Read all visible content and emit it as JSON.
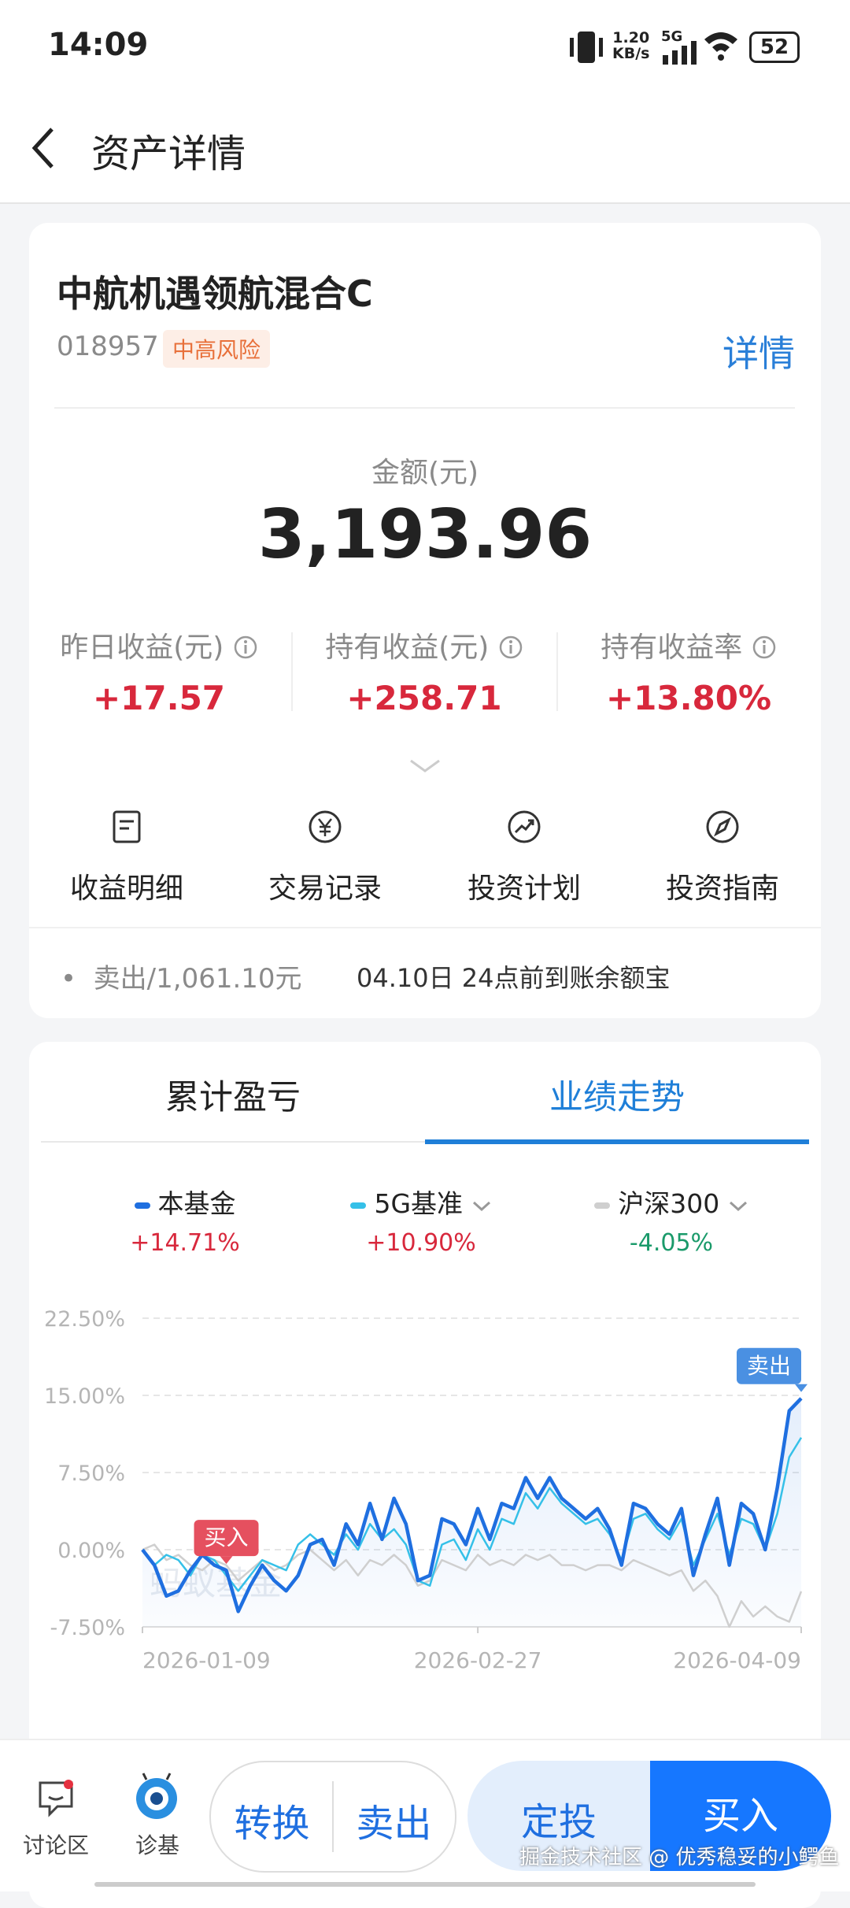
{
  "status_bar": {
    "time": "14:09",
    "net_speed": "1.20",
    "net_unit": "KB/s",
    "network": "5G",
    "battery": "52"
  },
  "header": {
    "title": "资产详情"
  },
  "fund": {
    "name": "中航机遇领航混合C",
    "code": "018957",
    "risk": "中高风险",
    "detail_link": "详情",
    "amount_label": "金额(元)",
    "amount": "3,193.96",
    "stats": [
      {
        "label": "昨日收益(元)",
        "value": "+17.57"
      },
      {
        "label": "持有收益(元)",
        "value": "+258.71"
      },
      {
        "label": "持有收益率",
        "value": "+13.80%"
      }
    ],
    "actions": [
      "收益明细",
      "交易记录",
      "投资计划",
      "投资指南"
    ],
    "notice": {
      "text": "卖出/1,061.10元",
      "arrival": "04.10日 24点前到账余额宝"
    }
  },
  "tabs": [
    "累计盈亏",
    "业绩走势"
  ],
  "active_tab": 1,
  "chart_data": {
    "type": "line",
    "watermark": "蚂蚁基金",
    "categories": [
      "2026-01-09",
      null,
      null,
      null,
      null,
      null,
      null,
      null,
      null,
      null,
      null,
      null,
      null,
      null,
      null,
      null,
      null,
      null,
      null,
      null,
      null,
      null,
      null,
      null,
      null,
      null,
      null,
      null,
      "2026-02-27",
      null,
      null,
      null,
      null,
      null,
      null,
      null,
      null,
      null,
      null,
      null,
      null,
      null,
      null,
      null,
      null,
      null,
      null,
      null,
      null,
      null,
      null,
      null,
      null,
      null,
      null,
      "2026-04-09"
    ],
    "series": [
      {
        "name": "本基金",
        "color": "#1f6fe0",
        "return": "+14.71%",
        "values": [
          0,
          -1.5,
          -4.5,
          -4.0,
          -2.0,
          -0.5,
          -1.5,
          -2.0,
          -6.0,
          -3.5,
          -1.5,
          -3.0,
          -4.0,
          -2.5,
          0.5,
          1.0,
          -1.5,
          2.5,
          0.5,
          4.5,
          1.0,
          5.0,
          2.5,
          -3.0,
          -2.5,
          3.0,
          2.5,
          0.5,
          4.0,
          1.0,
          4.5,
          4.0,
          7.0,
          5.0,
          7.0,
          5.0,
          4.0,
          3.0,
          4.0,
          2.0,
          -1.5,
          4.5,
          4.0,
          2.5,
          1.5,
          4.0,
          -2.5,
          1.5,
          5.0,
          -1.5,
          4.5,
          3.5,
          0.0,
          6.0,
          13.5,
          14.71
        ]
      },
      {
        "name": "5G基准",
        "color": "#35c0e8",
        "return": "+10.90%",
        "values": [
          0,
          -1.5,
          -0.5,
          -1.0,
          -2.5,
          -0.5,
          -1.0,
          -2.5,
          -4.0,
          -2.5,
          -1.0,
          -1.5,
          -2.0,
          0.5,
          1.5,
          0.5,
          -0.5,
          1.5,
          0.0,
          2.5,
          1.0,
          2.0,
          0.5,
          -3.0,
          -3.5,
          0.5,
          1.0,
          -1.0,
          2.0,
          0.0,
          3.0,
          2.5,
          5.5,
          4.0,
          6.0,
          4.5,
          3.5,
          2.5,
          3.0,
          1.5,
          -1.0,
          3.0,
          3.5,
          2.0,
          1.0,
          3.0,
          -1.5,
          1.0,
          3.5,
          -0.5,
          3.0,
          2.5,
          0.0,
          3.5,
          9.0,
          10.9
        ]
      },
      {
        "name": "沪深300",
        "color": "#cfcfcf",
        "return": "-4.05%",
        "values": [
          0,
          0.5,
          -1.0,
          -0.5,
          -1.5,
          -2.0,
          -1.0,
          -1.5,
          -3.0,
          -2.0,
          -1.0,
          -2.0,
          -1.5,
          -0.5,
          0.0,
          -1.0,
          -2.0,
          -1.0,
          -2.5,
          -1.0,
          -1.5,
          -0.5,
          -1.5,
          -3.5,
          -3.0,
          -1.0,
          -1.5,
          -2.0,
          -0.5,
          -1.5,
          -1.0,
          -1.5,
          -0.5,
          -1.0,
          -0.5,
          -1.5,
          -1.5,
          -2.0,
          -1.5,
          -1.5,
          -2.0,
          -1.0,
          -1.5,
          -2.0,
          -2.5,
          -2.0,
          -4.0,
          -3.0,
          -4.5,
          -7.5,
          -5.0,
          -6.5,
          -5.5,
          -6.5,
          -7.0,
          -4.05
        ]
      }
    ],
    "ylim": [
      -7.5,
      22.5
    ],
    "yticks": [
      {
        "value": -7.5,
        "label": "-7.50%"
      },
      {
        "value": 0,
        "label": "0.00%"
      },
      {
        "value": 7.5,
        "label": "7.50%"
      },
      {
        "value": 15,
        "label": "15.00%"
      },
      {
        "value": 22.5,
        "label": "22.50%"
      }
    ],
    "grid": true,
    "annotations": [
      {
        "text": "买入",
        "x_index": 7,
        "color": "#e5505f"
      },
      {
        "text": "卖出",
        "x_index": 55,
        "color": "#4a90e2"
      }
    ]
  },
  "bottom_bar": {
    "community": "讨论区",
    "diagnose": "诊基",
    "convert": "转换",
    "sell": "卖出",
    "auto_invest": "定投",
    "buy": "买入"
  },
  "watermark": "掘金技术社区 @ 优秀稳妥的小鳄鱼"
}
